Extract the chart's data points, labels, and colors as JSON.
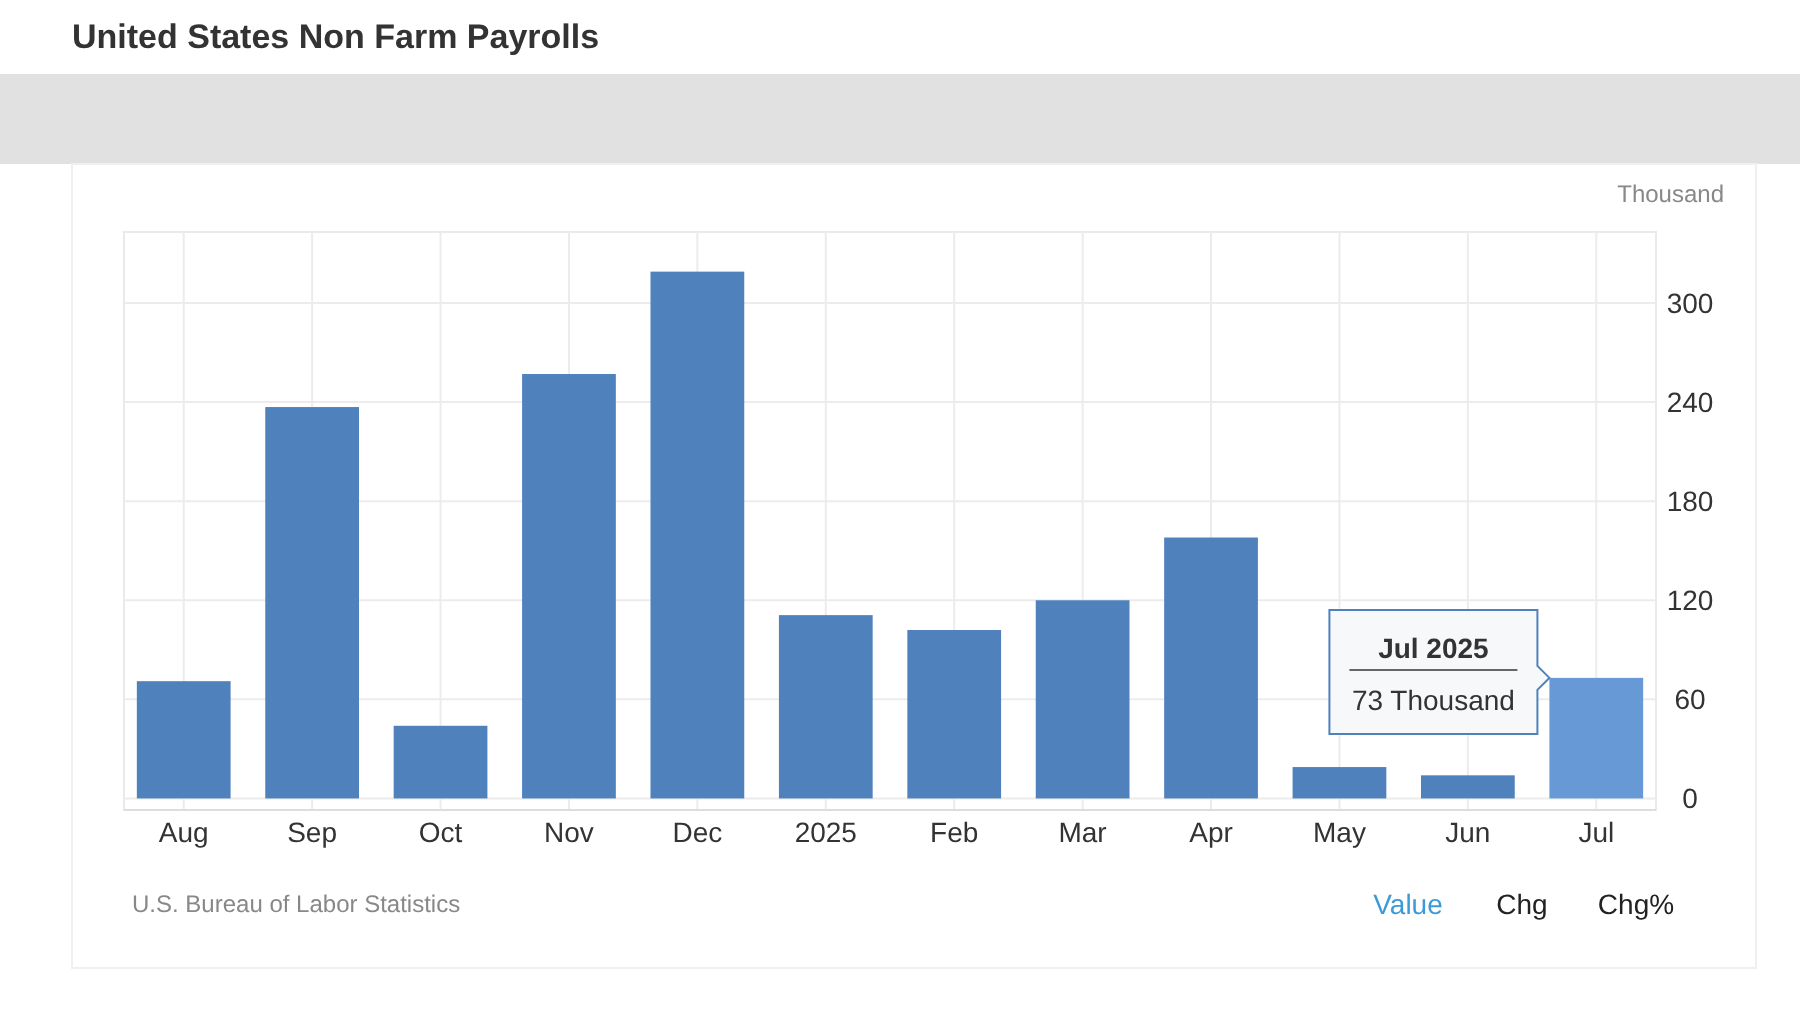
{
  "chart_data": {
    "type": "bar",
    "title": "United States Non Farm Payrolls",
    "ylabel": "Thousand",
    "categories": [
      "Aug",
      "Sep",
      "Oct",
      "Nov",
      "Dec",
      "2025",
      "Feb",
      "Mar",
      "Apr",
      "May",
      "Jun",
      "Jul"
    ],
    "values": [
      71,
      237,
      44,
      257,
      319,
      111,
      102,
      120,
      158,
      19,
      14,
      73
    ],
    "colors": [
      "#4f81bd",
      "#4f81bd",
      "#4f81bd",
      "#4f81bd",
      "#4f81bd",
      "#4f81bd",
      "#4f81bd",
      "#4f81bd",
      "#4f81bd",
      "#4f81bd",
      "#4f81bd",
      "#6699d6"
    ],
    "ylim": [
      -7,
      343
    ],
    "yticks": [
      0,
      60,
      120,
      180,
      240,
      300
    ],
    "grid": true,
    "annotations": [
      "U.S. Bureau of Labor Statistics",
      "Value",
      "Chg",
      "Chg%",
      "Jul 2025",
      "73 Thousand"
    ]
  }
}
